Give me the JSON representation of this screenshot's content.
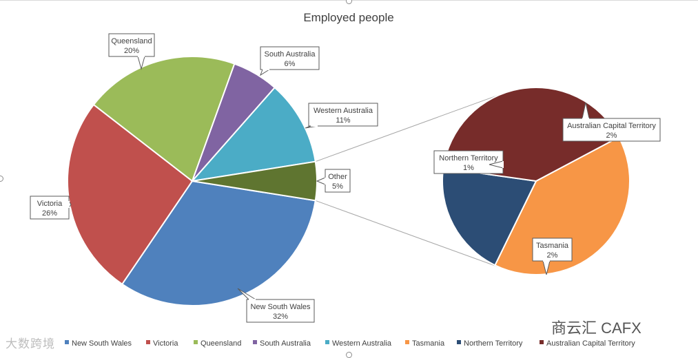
{
  "chart_data": {
    "type": "pie",
    "subtype": "pie-of-pie",
    "title": "Employed people",
    "primary_slices": [
      {
        "label": "New South Wales",
        "value": 32,
        "display": "32%",
        "color": "#4f81bd"
      },
      {
        "label": "Victoria",
        "value": 26,
        "display": "26%",
        "color": "#c0504d"
      },
      {
        "label": "Queensland",
        "value": 20,
        "display": "20%",
        "color": "#9bbb59"
      },
      {
        "label": "South Australia",
        "value": 6,
        "display": "6%",
        "color": "#8064a2"
      },
      {
        "label": "Western Australia",
        "value": 11,
        "display": "11%",
        "color": "#4bacc6"
      },
      {
        "label": "Other",
        "value": 5,
        "display": "5%",
        "color": "#5f7530"
      }
    ],
    "secondary_slices": [
      {
        "label": "Tasmania",
        "value": 2,
        "display": "2%",
        "color": "#f79646"
      },
      {
        "label": "Northern Territory",
        "value": 1,
        "display": "1%",
        "color": "#2c4d75"
      },
      {
        "label": "Australian Capital Territory",
        "value": 2,
        "display": "2%",
        "color": "#772c2a"
      }
    ],
    "legend": [
      {
        "label": "New South Wales",
        "color": "#4f81bd"
      },
      {
        "label": "Victoria",
        "color": "#c0504d"
      },
      {
        "label": "Queensland",
        "color": "#9bbb59"
      },
      {
        "label": "South Australia",
        "color": "#8064a2"
      },
      {
        "label": "Western Australia",
        "color": "#4bacc6"
      },
      {
        "label": "Tasmania",
        "color": "#f79646"
      },
      {
        "label": "Northern Territory",
        "color": "#2c4d75"
      },
      {
        "label": "Australian Capital Territory",
        "color": "#772c2a"
      }
    ],
    "legend_position": "bottom"
  },
  "watermarks": {
    "left": "大数跨境",
    "right": "商云汇 CAFX"
  }
}
